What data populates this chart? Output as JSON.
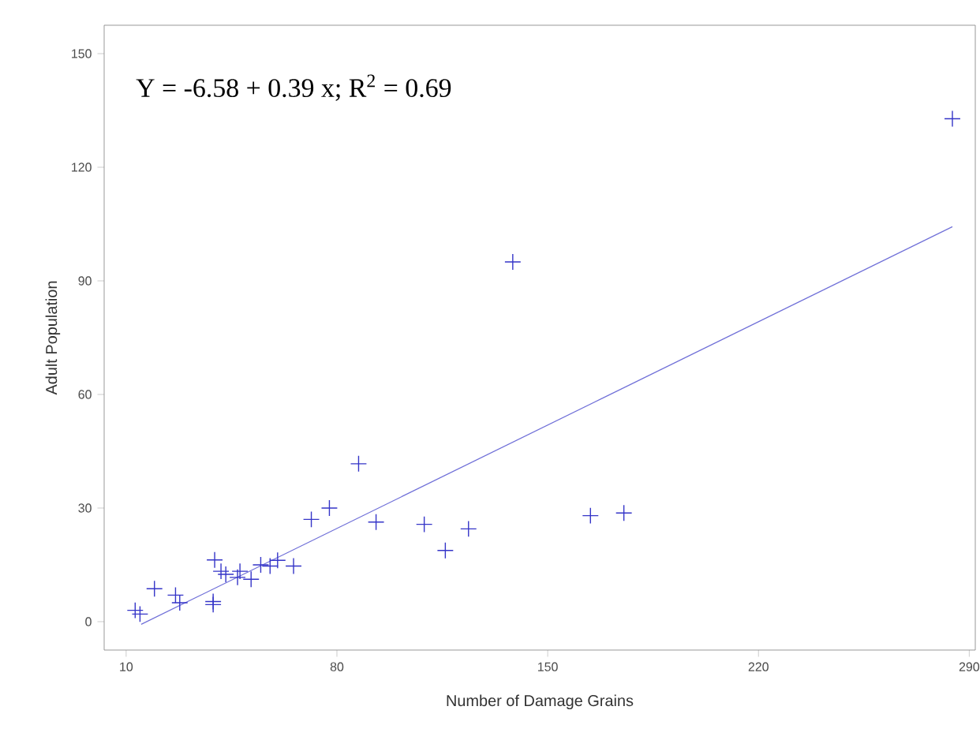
{
  "chart_data": {
    "type": "scatter",
    "xlabel": "Number of Damage Grains",
    "ylabel": "Adult Population",
    "annotations": [
      "Y = -6.58 + 0.39 x; R$^{2}$ = 0.69"
    ],
    "xlim": [
      2.7,
      292
    ],
    "ylim": [
      -7.5,
      157.5
    ],
    "xticks": [
      10,
      80,
      150,
      220,
      290
    ],
    "yticks": [
      0,
      30,
      60,
      90,
      120,
      150
    ],
    "grid": false,
    "marker": "cross",
    "series": [
      {
        "color": "#3535c8",
        "x": [
          13,
          14.6,
          19.4,
          26.4,
          27.8,
          38.9,
          38.9,
          39.4,
          41.5,
          43.1,
          47,
          47.8,
          51.5,
          54.7,
          57.8,
          60.3,
          65.6,
          71.5,
          77.5,
          87.2,
          93,
          109,
          116,
          123.7,
          138.4,
          164.2,
          175.3,
          284.4
        ],
        "values": [
          3,
          2,
          8.7,
          7,
          5,
          5.3,
          4.5,
          16.3,
          13.3,
          12.5,
          11.7,
          13.3,
          11.2,
          15,
          14.7,
          16.2,
          14.7,
          27,
          30,
          41.7,
          26.3,
          25.7,
          18.8,
          24.5,
          95,
          28,
          28.7,
          132.8
        ]
      },
      {
        "type": "line",
        "color": "#7070d8",
        "marker": "none",
        "line_style": "solid",
        "x": [
          15,
          284.4
        ],
        "values": [
          -0.7,
          104.3
        ]
      }
    ]
  }
}
